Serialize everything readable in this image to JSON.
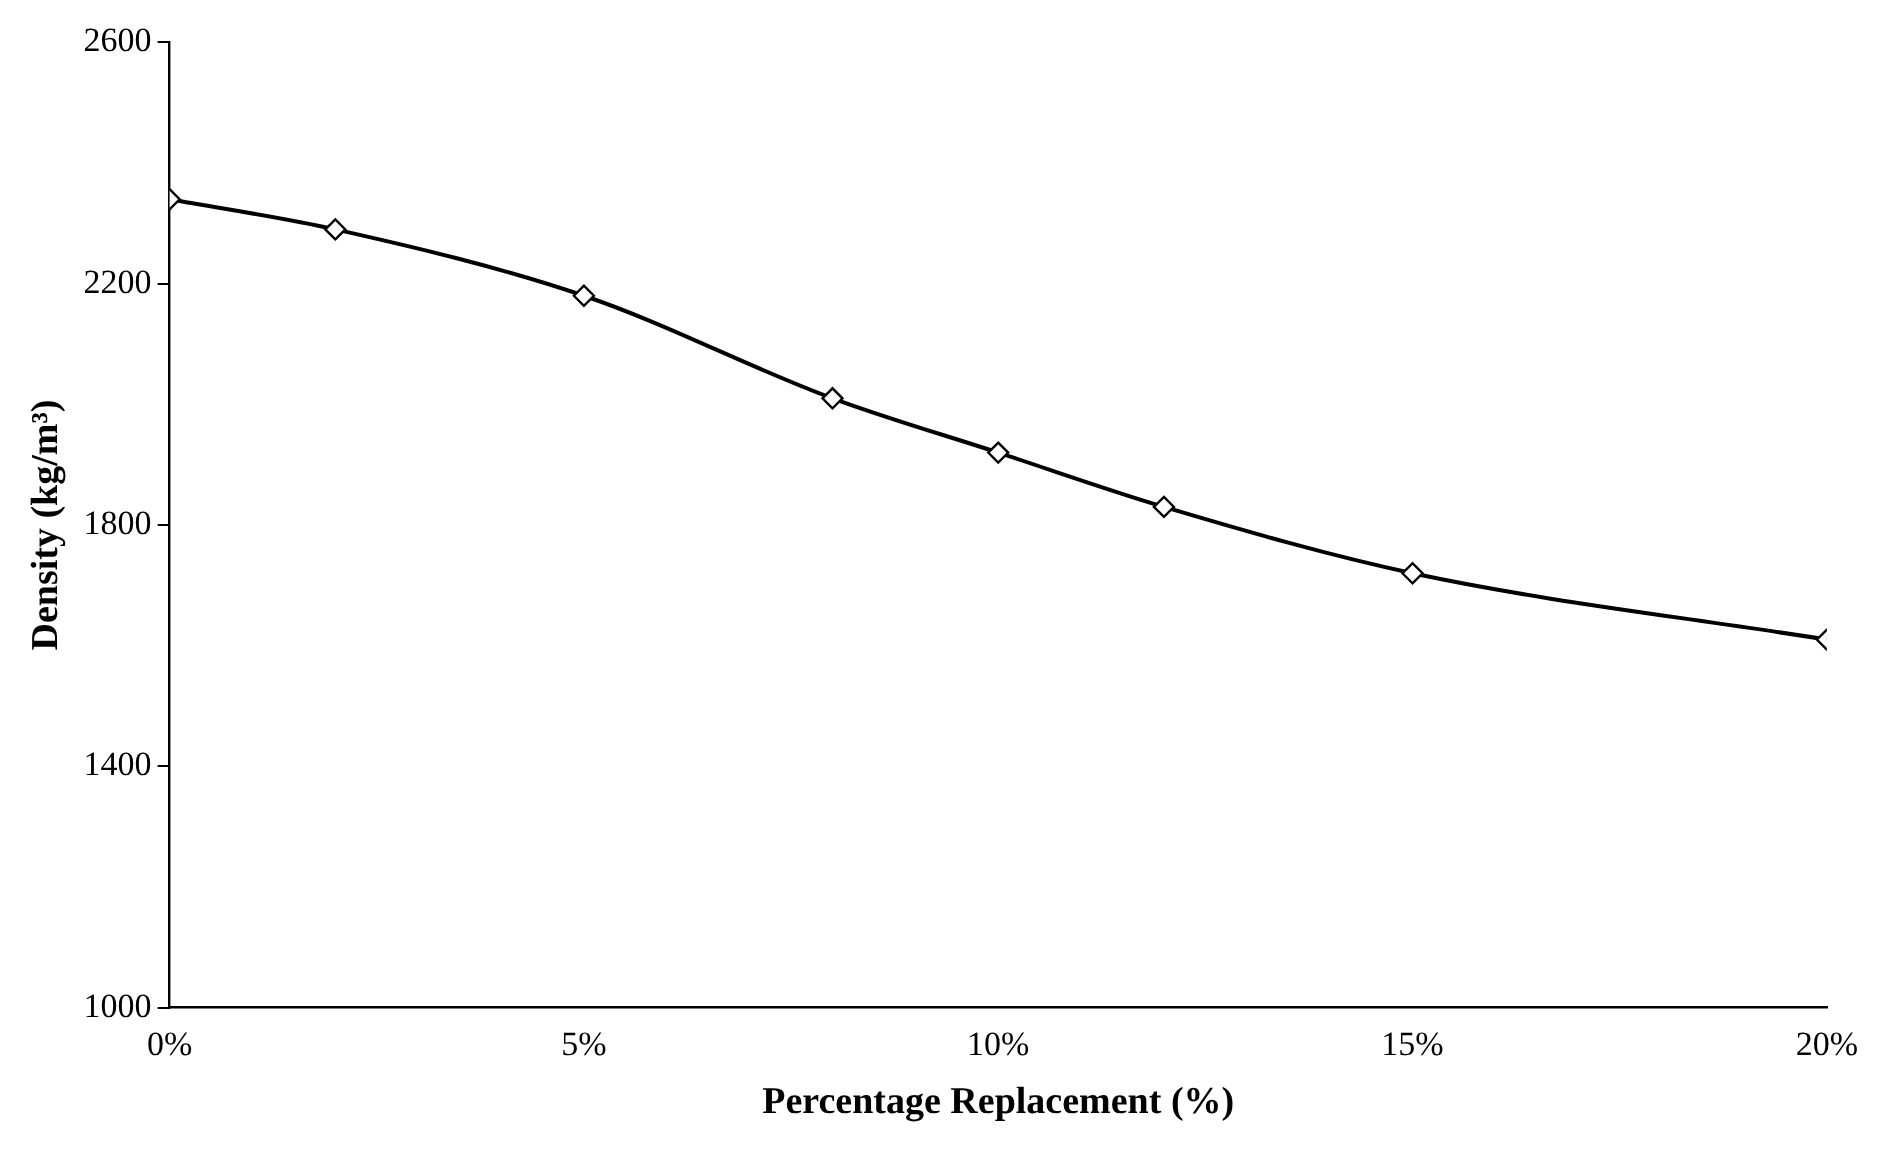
{
  "chart_data": {
    "type": "line",
    "xlabel": "Percentage Replacement (%)",
    "ylabel": "Density (kg/m³)",
    "x": [
      0,
      2,
      5,
      8,
      10,
      12,
      15,
      20
    ],
    "series": [
      {
        "color": "#000000",
        "values": [
          2340,
          2290,
          2180,
          2010,
          1920,
          1830,
          1720,
          1610
        ]
      }
    ],
    "xlim": [
      0,
      20
    ],
    "xticks": [
      {
        "value": 0,
        "label": "0%"
      },
      {
        "value": 5,
        "label": "5%"
      },
      {
        "value": 10,
        "label": "10%"
      },
      {
        "value": 15,
        "label": "15%"
      },
      {
        "value": 20,
        "label": "20%"
      }
    ],
    "ylim": [
      1000,
      2600
    ],
    "yticks": [
      1000,
      1400,
      1800,
      2200,
      2600
    ],
    "grid": false,
    "legend": false,
    "marker": "diamond",
    "line_style": "solid"
  }
}
